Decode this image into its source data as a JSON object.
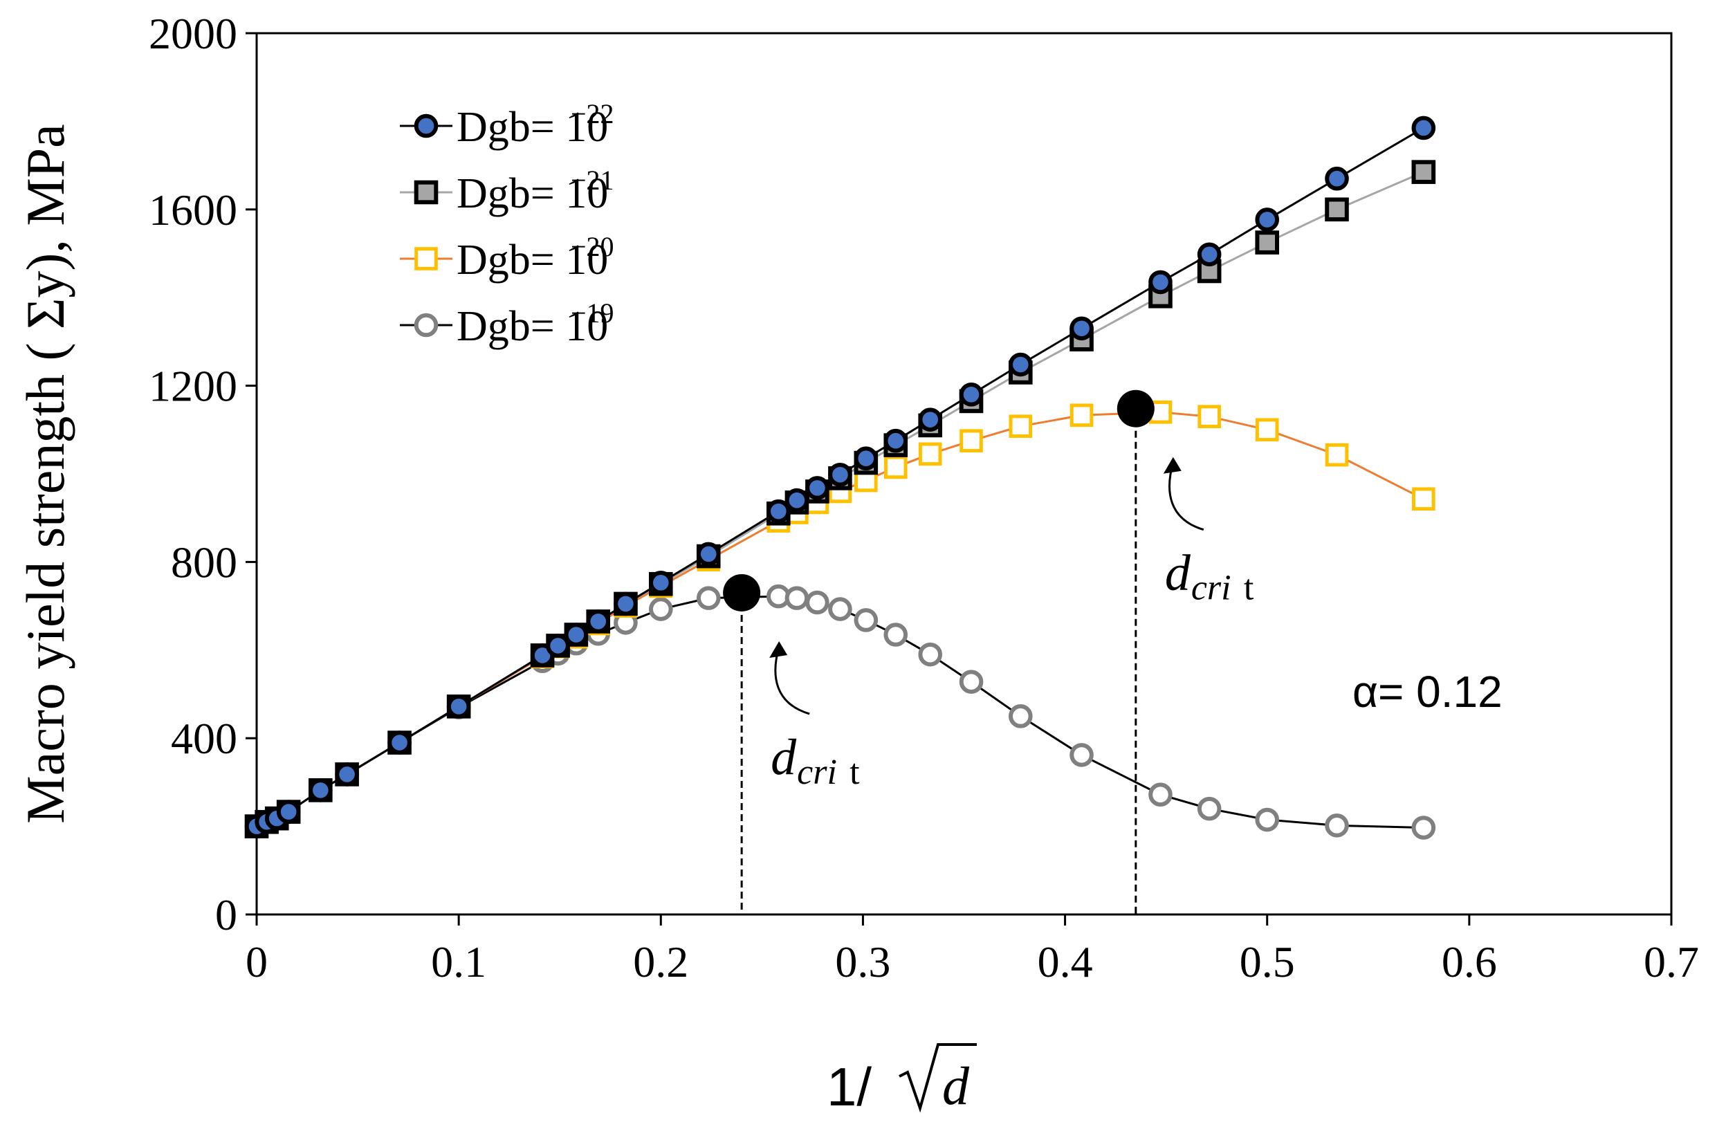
{
  "chart_data": {
    "type": "line",
    "title": "",
    "xlabel": "1/ √d",
    "xlabel_prefix": "1/ ",
    "xlabel_var": "d",
    "ylabel": "Macro yield strength ( Σy), MPa",
    "xlim": [
      0,
      0.7
    ],
    "ylim": [
      0,
      2000
    ],
    "x_ticks": [
      0,
      0.1,
      0.2,
      0.3,
      0.4,
      0.5,
      0.6,
      0.7
    ],
    "x_tick_labels": [
      "0",
      "0.1",
      "0.2",
      "0.3",
      "0.4",
      "0.5",
      "0.6",
      "0.7"
    ],
    "y_ticks": [
      0,
      400,
      800,
      1200,
      1600,
      2000
    ],
    "y_tick_labels": [
      "0",
      "400",
      "800",
      "1200",
      "1600",
      "2000"
    ],
    "grid": false,
    "legend_position": "top-left",
    "series": [
      {
        "name": "Dgb= 10⁻²²",
        "label_base": "Dgb= 10",
        "label_exp": "−22",
        "marker": "circle",
        "marker_fill": "#4472c4",
        "marker_stroke": "#000000",
        "line_color": "#000000",
        "x": [
          0.0,
          0.005,
          0.01,
          0.0158,
          0.0316,
          0.0447,
          0.0707,
          0.1,
          0.1414,
          0.1491,
          0.1581,
          0.169,
          0.1826,
          0.2,
          0.2236,
          0.2582,
          0.2673,
          0.2774,
          0.2887,
          0.3015,
          0.3162,
          0.3333,
          0.3536,
          0.378,
          0.4082,
          0.4472,
          0.4714,
          0.5,
          0.5345,
          0.5774
        ],
        "values": [
          200,
          210,
          218,
          233,
          282,
          318,
          390,
          472,
          588,
          610,
          635,
          665,
          705,
          753,
          818,
          915,
          940,
          968,
          998,
          1035,
          1075,
          1123,
          1180,
          1248,
          1330,
          1435,
          1498,
          1577,
          1670,
          1785
        ]
      },
      {
        "name": "Dgb= 10⁻²¹",
        "label_base": "Dgb= 10",
        "label_exp": "−21",
        "marker": "square",
        "marker_fill": "#a6a6a6",
        "marker_stroke": "#000000",
        "line_color": "#a6a6a6",
        "x": [
          0.0,
          0.005,
          0.01,
          0.0158,
          0.0316,
          0.0447,
          0.0707,
          0.1,
          0.1414,
          0.1491,
          0.1581,
          0.169,
          0.1826,
          0.2,
          0.2236,
          0.2582,
          0.2673,
          0.2774,
          0.2887,
          0.3015,
          0.3162,
          0.3333,
          0.3536,
          0.378,
          0.4082,
          0.4472,
          0.4714,
          0.5,
          0.5345,
          0.5774
        ],
        "values": [
          200,
          210,
          218,
          233,
          282,
          318,
          390,
          472,
          588,
          610,
          635,
          665,
          705,
          750,
          813,
          910,
          935,
          960,
          990,
          1025,
          1065,
          1110,
          1165,
          1230,
          1305,
          1403,
          1460,
          1525,
          1600,
          1685
        ]
      },
      {
        "name": "Dgb= 10⁻²⁰",
        "label_base": "Dgb= 10",
        "label_exp": "−20",
        "marker": "square-open",
        "marker_fill": "#ffffff",
        "marker_stroke": "#ffc000",
        "line_color": "#ed7d31",
        "x": [
          0.0,
          0.005,
          0.01,
          0.0158,
          0.0316,
          0.0447,
          0.0707,
          0.1,
          0.1414,
          0.1491,
          0.1581,
          0.169,
          0.1826,
          0.2,
          0.2236,
          0.2582,
          0.2673,
          0.2774,
          0.2887,
          0.3015,
          0.3162,
          0.3333,
          0.3536,
          0.378,
          0.4082,
          0.4472,
          0.4714,
          0.5,
          0.5345,
          0.5774
        ],
        "values": [
          200,
          210,
          218,
          233,
          282,
          318,
          390,
          472,
          585,
          608,
          630,
          660,
          700,
          745,
          805,
          893,
          912,
          935,
          960,
          985,
          1015,
          1045,
          1075,
          1108,
          1133,
          1140,
          1130,
          1100,
          1043,
          943
        ]
      },
      {
        "name": "Dgb= 10⁻¹⁹",
        "label_base": "Dgb= 10",
        "label_exp": "−19",
        "marker": "circle-open",
        "marker_fill": "#ffffff",
        "marker_stroke": "#808080",
        "line_color": "#000000",
        "x": [
          0.0,
          0.005,
          0.01,
          0.0158,
          0.0316,
          0.0447,
          0.0707,
          0.1,
          0.1414,
          0.1491,
          0.1581,
          0.169,
          0.1826,
          0.2,
          0.2236,
          0.2582,
          0.2673,
          0.2774,
          0.2887,
          0.3015,
          0.3162,
          0.3333,
          0.3536,
          0.378,
          0.4082,
          0.4472,
          0.4714,
          0.5,
          0.5345,
          0.5774
        ],
        "values": [
          200,
          210,
          218,
          233,
          282,
          318,
          390,
          470,
          575,
          592,
          615,
          637,
          662,
          693,
          718,
          722,
          718,
          708,
          693,
          668,
          635,
          590,
          528,
          450,
          362,
          272,
          240,
          215,
          202,
          197
        ]
      }
    ],
    "critical_points": [
      {
        "x": 0.24,
        "y": 730,
        "label_main": "d",
        "label_sub": "cri",
        "label_tail": "t"
      },
      {
        "x": 0.435,
        "y": 1148,
        "label_main": "d",
        "label_sub": "cri",
        "label_tail": "t"
      }
    ],
    "annotation": "α= 0.12"
  }
}
